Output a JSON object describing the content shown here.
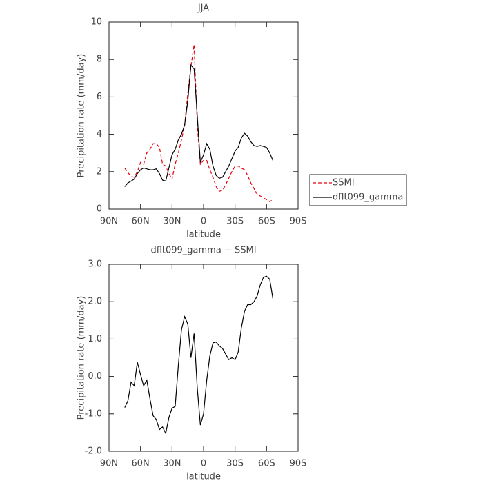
{
  "chart_data": [
    {
      "type": "line",
      "title": "JJA",
      "xlabel": "latitude",
      "ylabel": "Precipitation rate (mm/day)",
      "x": [
        75,
        72,
        69,
        66,
        63,
        60,
        57,
        54,
        51,
        48,
        45,
        42,
        39,
        36,
        33,
        30,
        27,
        24,
        21,
        18,
        15,
        12,
        9,
        6,
        3,
        0,
        -3,
        -6,
        -9,
        -12,
        -15,
        -18,
        -21,
        -24,
        -27,
        -30,
        -33,
        -36,
        -39,
        -42,
        -45,
        -48,
        -51,
        -54,
        -57,
        -60,
        -63,
        -66
      ],
      "series": [
        {
          "name": "SSMI",
          "color": "#e8000b",
          "linestyle": "dashed",
          "values": [
            2.2,
            1.95,
            1.75,
            1.7,
            2.0,
            2.5,
            2.4,
            3.0,
            3.2,
            3.5,
            3.5,
            3.3,
            2.4,
            2.3,
            1.9,
            1.6,
            2.4,
            3.0,
            3.7,
            4.5,
            6.2,
            7.6,
            8.8,
            4.5,
            2.4,
            2.6,
            2.6,
            2.1,
            1.7,
            1.2,
            0.95,
            1.0,
            1.3,
            1.65,
            2.0,
            2.3,
            2.3,
            2.2,
            2.1,
            1.8,
            1.4,
            1.1,
            0.8,
            0.7,
            0.6,
            0.5,
            0.4,
            0.5
          ]
        },
        {
          "name": "dflt099_gamma",
          "color": "#000000",
          "linestyle": "solid",
          "values": [
            1.2,
            1.4,
            1.5,
            1.6,
            1.9,
            2.1,
            2.2,
            2.15,
            2.1,
            2.1,
            2.15,
            1.9,
            1.55,
            1.5,
            2.2,
            2.9,
            3.2,
            3.7,
            4.0,
            4.5,
            5.8,
            7.7,
            7.5,
            5.0,
            2.5,
            2.9,
            3.5,
            3.2,
            2.3,
            1.8,
            1.65,
            1.7,
            2.0,
            2.3,
            2.7,
            3.1,
            3.3,
            3.8,
            4.05,
            3.9,
            3.6,
            3.4,
            3.35,
            3.4,
            3.35,
            3.3,
            3.0,
            2.6
          ]
        }
      ],
      "xlim": [
        90,
        -90
      ],
      "xticks": [
        {
          "value": 90,
          "label": "90N"
        },
        {
          "value": 60,
          "label": "60N"
        },
        {
          "value": 30,
          "label": "30N"
        },
        0,
        {
          "value": -30,
          "label": "30S"
        },
        {
          "value": -60,
          "label": "60S"
        },
        {
          "value": -90,
          "label": "90S"
        }
      ],
      "ylim": [
        0,
        10
      ],
      "yticks": [
        0,
        2,
        4,
        6,
        8,
        10
      ],
      "legend": "right"
    },
    {
      "type": "line",
      "title": "dflt099_gamma − SSMI",
      "xlabel": "latitude",
      "ylabel": "Precipitation rate (mm/day)",
      "x": [
        75,
        72,
        69,
        66,
        63,
        60,
        57,
        54,
        51,
        48,
        45,
        42,
        39,
        36,
        33,
        30,
        27,
        24,
        21,
        18,
        15,
        12,
        9,
        6,
        3,
        0,
        -3,
        -6,
        -9,
        -12,
        -15,
        -18,
        -21,
        -24,
        -27,
        -30,
        -33,
        -36,
        -39,
        -42,
        -45,
        -48,
        -51,
        -54,
        -57,
        -60,
        -63,
        -66
      ],
      "values": [
        -0.83,
        -0.65,
        -0.15,
        -0.25,
        0.38,
        0.05,
        -0.25,
        -0.1,
        -0.6,
        -1.05,
        -1.15,
        -1.42,
        -1.35,
        -1.52,
        -1.1,
        -0.85,
        -0.8,
        0.3,
        1.25,
        1.6,
        1.4,
        0.5,
        1.15,
        -0.3,
        -1.3,
        -1.0,
        -0.1,
        0.55,
        0.9,
        0.92,
        0.82,
        0.75,
        0.6,
        0.45,
        0.5,
        0.45,
        0.65,
        1.3,
        1.75,
        1.92,
        1.92,
        2.0,
        2.15,
        2.45,
        2.65,
        2.68,
        2.6,
        2.08
      ],
      "color": "#000000",
      "xlim": [
        90,
        -90
      ],
      "xticks": [
        {
          "value": 90,
          "label": "90N"
        },
        {
          "value": 60,
          "label": "60N"
        },
        {
          "value": 30,
          "label": "30N"
        },
        0,
        {
          "value": -30,
          "label": "30S"
        },
        {
          "value": -60,
          "label": "60S"
        },
        {
          "value": -90,
          "label": "90S"
        }
      ],
      "ylim": [
        -2,
        3
      ],
      "yticks": [
        {
          "value": -2,
          "label": "-2.0"
        },
        {
          "value": -1,
          "label": "-1.0"
        },
        {
          "value": 0,
          "label": "0.0"
        },
        {
          "value": 1,
          "label": "1.0"
        },
        {
          "value": 2,
          "label": "2.0"
        },
        {
          "value": 3,
          "label": "3.0"
        }
      ]
    }
  ]
}
